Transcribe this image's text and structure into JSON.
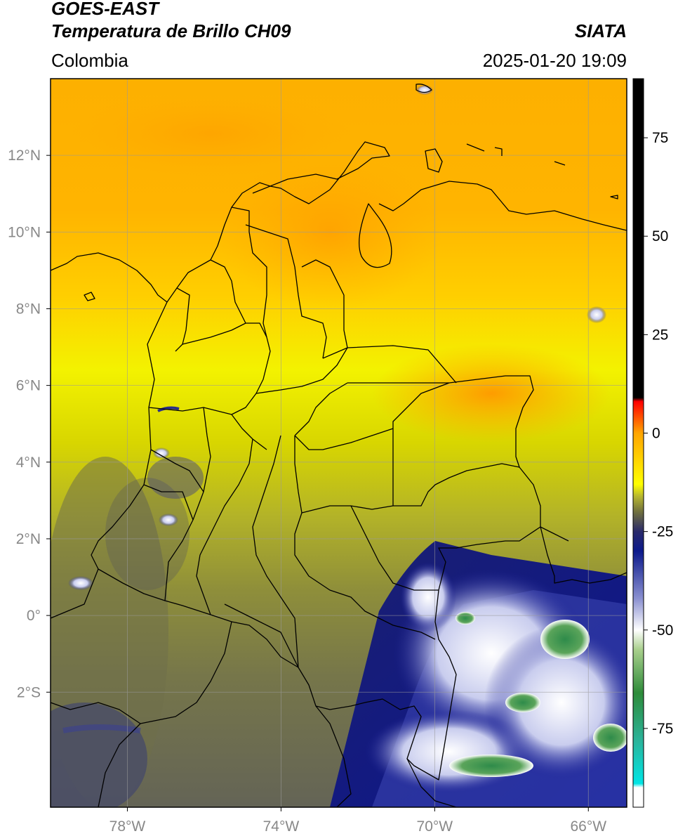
{
  "header": {
    "satellite": "GOES-EAST",
    "product": "Temperatura de Brillo CH09",
    "organization": "SIATA",
    "region": "Colombia",
    "datetime": "2025-01-20 19:09"
  },
  "map": {
    "lon_range": [
      -80,
      -65
    ],
    "lat_range": [
      -5,
      14
    ],
    "lon_ticks": [
      {
        "value": -78,
        "label": "78°W"
      },
      {
        "value": -74,
        "label": "74°W"
      },
      {
        "value": -70,
        "label": "70°W"
      },
      {
        "value": -66,
        "label": "66°W"
      }
    ],
    "lat_ticks": [
      {
        "value": 12,
        "label": "12°N"
      },
      {
        "value": 10,
        "label": "10°N"
      },
      {
        "value": 8,
        "label": "8°N"
      },
      {
        "value": 6,
        "label": "6°N"
      },
      {
        "value": 4,
        "label": "4°N"
      },
      {
        "value": 2,
        "label": "2°N"
      },
      {
        "value": 0,
        "label": "0°"
      },
      {
        "value": -2,
        "label": "2°S"
      }
    ],
    "grid": true
  },
  "colorbar": {
    "range": [
      -95,
      90
    ],
    "ticks": [
      {
        "value": 75,
        "label": "75"
      },
      {
        "value": 50,
        "label": "50"
      },
      {
        "value": 25,
        "label": "25"
      },
      {
        "value": 0,
        "label": "0"
      },
      {
        "value": -25,
        "label": "-25"
      },
      {
        "value": -50,
        "label": "-50"
      },
      {
        "value": -75,
        "label": "-75"
      }
    ],
    "stops": [
      {
        "value": -95,
        "color": "#ffffff"
      },
      {
        "value": -90,
        "color": "#ffffff"
      },
      {
        "value": -89,
        "color": "#00e5e5"
      },
      {
        "value": -78,
        "color": "#2bb39a"
      },
      {
        "value": -66,
        "color": "#2e8b3a"
      },
      {
        "value": -55,
        "color": "#a8cf8c"
      },
      {
        "value": -50,
        "color": "#ffffff"
      },
      {
        "value": -42,
        "color": "#8a90d0"
      },
      {
        "value": -30,
        "color": "#0c1a8c"
      },
      {
        "value": -25,
        "color": "#2a2a6a"
      },
      {
        "value": -20,
        "color": "#70703e"
      },
      {
        "value": -16,
        "color": "#b8b830"
      },
      {
        "value": -13,
        "color": "#ffff00"
      },
      {
        "value": 0,
        "color": "#ffa500"
      },
      {
        "value": 8,
        "color": "#ff0000"
      },
      {
        "value": 9,
        "color": "#000000"
      },
      {
        "value": 90,
        "color": "#000000"
      }
    ]
  }
}
